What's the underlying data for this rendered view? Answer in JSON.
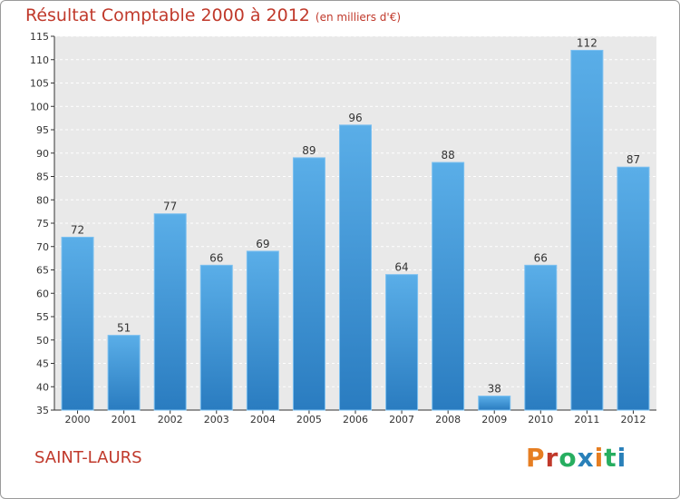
{
  "header": {
    "title": "Résultat Comptable 2000 à 2012",
    "subtitle": "(en milliers d'€)"
  },
  "footer": {
    "commune": "SAINT-LAURS",
    "brand": "Proxiti"
  },
  "colors": {
    "title": "#c0392b",
    "bar_top": "#5aaee8",
    "bar_bottom": "#2a7cc0",
    "plot_bg": "#e9e9e9",
    "brand_letters": [
      "#e67e22",
      "#c0392b",
      "#27ae60",
      "#2980b9",
      "#e67e22",
      "#27ae60",
      "#2980b9"
    ]
  },
  "chart_data": {
    "type": "bar",
    "title": "Résultat Comptable 2000 à 2012",
    "subtitle": "(en milliers d'€)",
    "xlabel": "",
    "ylabel": "",
    "categories": [
      "2000",
      "2001",
      "2002",
      "2003",
      "2004",
      "2005",
      "2006",
      "2007",
      "2008",
      "2009",
      "2010",
      "2011",
      "2012"
    ],
    "values": [
      72,
      51,
      77,
      66,
      69,
      89,
      96,
      64,
      88,
      38,
      66,
      112,
      87
    ],
    "ylim": [
      35,
      115
    ],
    "yticks": [
      35,
      40,
      45,
      50,
      55,
      60,
      65,
      70,
      75,
      80,
      85,
      90,
      95,
      100,
      105,
      110,
      115
    ],
    "grid": "horizontal-dashed"
  }
}
